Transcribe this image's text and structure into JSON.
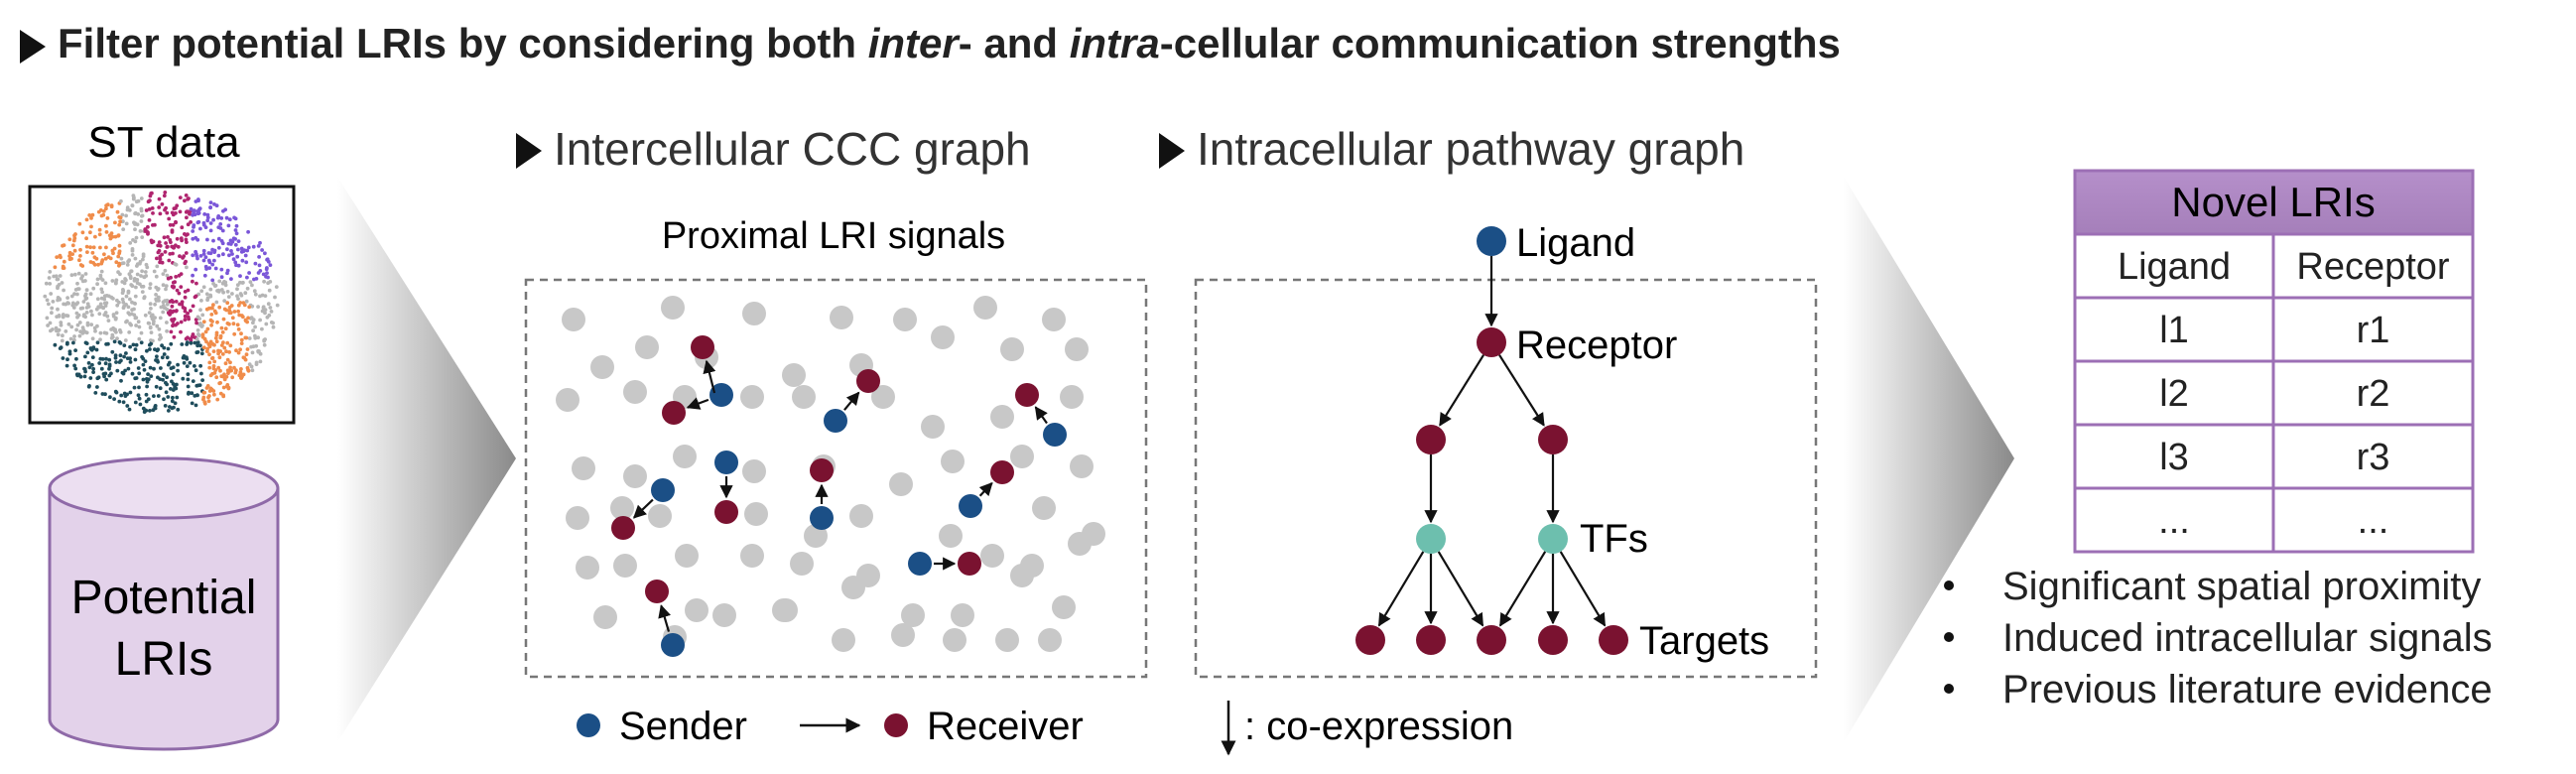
{
  "title": {
    "part1": "Filter potential LRIs by considering both ",
    "inter": "inter",
    "part2": "- and ",
    "intra": "intra",
    "part3": "-cellular communication strengths"
  },
  "st": {
    "label": "ST data"
  },
  "db": {
    "line1": "Potential",
    "line2": "LRIs"
  },
  "ccc": {
    "header": "Intercellular CCC graph",
    "subtitle": "Proximal LRI signals"
  },
  "legend": {
    "sender": "Sender",
    "receiver": "Receiver",
    "coexpr": ": co-expression"
  },
  "path": {
    "header": "Intracellular pathway graph",
    "ligand": "Ligand",
    "receptor": "Receptor",
    "tfs": "TFs",
    "targets": "Targets"
  },
  "table": {
    "title": "Novel LRIs",
    "headers": [
      "Ligand",
      "Receptor"
    ],
    "rows": [
      [
        "l1",
        "r1"
      ],
      [
        "l2",
        "r2"
      ],
      [
        "l3",
        "r3"
      ],
      [
        "...",
        "..."
      ]
    ]
  },
  "bullets": [
    "Significant spatial proximity",
    "Induced intracellular signals",
    "Previous literature evidence"
  ],
  "colors": {
    "sender": "#1b4f86",
    "receiver": "#7a1230",
    "tf": "#6dbfae",
    "gray": "#c8c8c8",
    "table_header": "#a57fba",
    "table_border": "#9c6fb5",
    "db_fill": "#e3d2ea",
    "db_stroke": "#8f6aa8",
    "st_teal": "#1f4d5c",
    "st_orange": "#f08c4a",
    "st_magenta": "#b0256f",
    "st_purple": "#7a56d8",
    "st_gray": "#b5b5b5"
  }
}
